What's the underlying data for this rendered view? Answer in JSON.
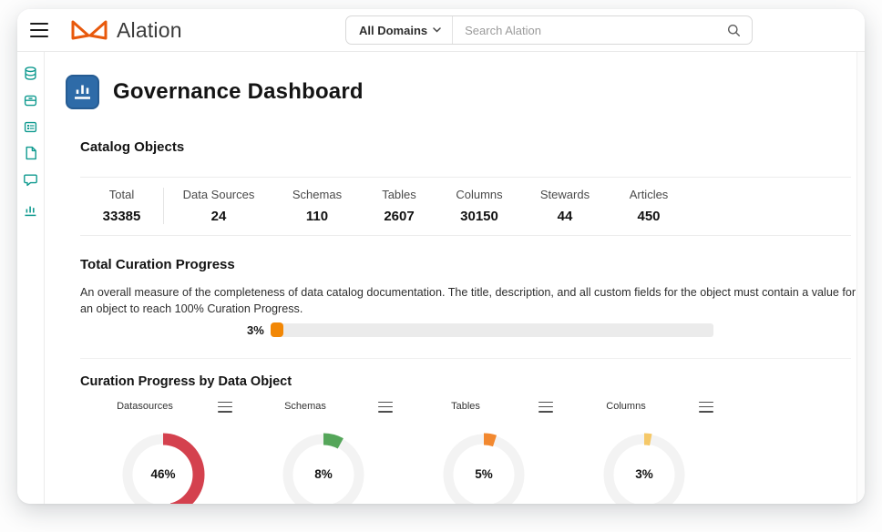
{
  "header": {
    "logo_text": "Alation",
    "domain_filter_label": "All Domains",
    "search_placeholder": "Search Alation"
  },
  "sidebar": {
    "items": [
      {
        "icon": "data-sources-icon"
      },
      {
        "icon": "queries-icon"
      },
      {
        "icon": "glossary-icon"
      },
      {
        "icon": "documents-icon"
      },
      {
        "icon": "conversations-icon"
      },
      {
        "icon": "analytics-icon"
      }
    ]
  },
  "page": {
    "title": "Governance Dashboard"
  },
  "catalog_objects": {
    "heading": "Catalog Objects",
    "stats": [
      {
        "label": "Total",
        "value": "33385"
      },
      {
        "label": "Data Sources",
        "value": "24"
      },
      {
        "label": "Schemas",
        "value": "110"
      },
      {
        "label": "Tables",
        "value": "2607"
      },
      {
        "label": "Columns",
        "value": "30150"
      },
      {
        "label": "Stewards",
        "value": "44"
      },
      {
        "label": "Articles",
        "value": "450"
      }
    ]
  },
  "curation_progress": {
    "heading": "Total Curation Progress",
    "description": "An overall measure of the completeness of data catalog documentation. The title, description, and all custom fields for the object must contain a value for an object to reach 100% Curation Progress.",
    "percent": 3,
    "percent_label": "3%",
    "bar_color": "#f28705",
    "track_color": "#ebebeb"
  },
  "chart_data": {
    "type": "pie",
    "title": "Curation Progress by Data Object",
    "legend_position": "none",
    "track_color": "#f3f3f3",
    "charts": [
      {
        "label": "Datasources",
        "percent": 46,
        "percent_label": "46%",
        "color": "#d4414e"
      },
      {
        "label": "Schemas",
        "percent": 8,
        "percent_label": "8%",
        "color": "#55a65a"
      },
      {
        "label": "Tables",
        "percent": 5,
        "percent_label": "5%",
        "color": "#f2882f"
      },
      {
        "label": "Columns",
        "percent": 3,
        "percent_label": "3%",
        "color": "#f5c868"
      }
    ]
  },
  "colors": {
    "brand_orange": "#e8590c",
    "sidebar_teal": "#0f9a8f",
    "title_badge_blue": "#2e6ba8"
  }
}
